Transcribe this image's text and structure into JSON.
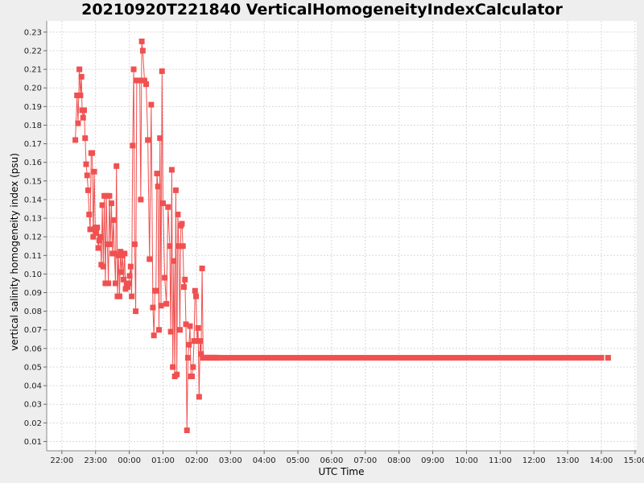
{
  "chart_data": {
    "type": "line",
    "title": "20210920T221840 VerticalHomogeneityIndexCalculator",
    "xlabel": "UTC Time",
    "ylabel": "vertical salinity homogeneity index (psu)",
    "x_ticks": [
      "22:00",
      "23:00",
      "00:00",
      "01:00",
      "02:00",
      "03:00",
      "04:00",
      "05:00",
      "06:00",
      "07:00",
      "08:00",
      "09:00",
      "10:00",
      "11:00",
      "12:00",
      "13:00",
      "14:00",
      "15:00"
    ],
    "y_ticks": [
      "0.01",
      "0.02",
      "0.03",
      "0.04",
      "0.05",
      "0.06",
      "0.07",
      "0.08",
      "0.09",
      "0.10",
      "0.11",
      "0.12",
      "0.13",
      "0.14",
      "0.15",
      "0.16",
      "0.17",
      "0.18",
      "0.19",
      "0.20",
      "0.21",
      "0.22",
      "0.23"
    ],
    "xlim_hours": [
      21.55,
      39.05
    ],
    "ylim": [
      0.005,
      0.236
    ],
    "grid": true,
    "series_color": "#f05050",
    "series": [
      {
        "x_hours": [
          22.4,
          22.45,
          22.48,
          22.52,
          22.55,
          22.58,
          22.6,
          22.63,
          22.66,
          22.69,
          22.72,
          22.75,
          22.78,
          22.81,
          22.84,
          22.87,
          22.9,
          22.93,
          22.96,
          22.99,
          23.02,
          23.05,
          23.08,
          23.11,
          23.14,
          23.17,
          23.2,
          23.23,
          23.26,
          23.29,
          23.32,
          23.35,
          23.38,
          23.41,
          23.44,
          23.47,
          23.5,
          23.53,
          23.56,
          23.59,
          23.62,
          23.65,
          23.68,
          23.71,
          23.74,
          23.77,
          23.8,
          23.83,
          23.86,
          23.89,
          23.92,
          23.95,
          23.98,
          24.01,
          24.04,
          24.07,
          24.1,
          24.13,
          24.16,
          24.19,
          24.22,
          24.25,
          24.28,
          24.31,
          24.34,
          24.37,
          24.4,
          24.45,
          24.5,
          24.55,
          24.6,
          24.65,
          24.7,
          24.73,
          24.76,
          24.79,
          24.82,
          24.85,
          24.88,
          24.91,
          24.94,
          24.97,
          25.0,
          25.05,
          25.1,
          25.15,
          25.2,
          25.23,
          25.26,
          25.29,
          25.32,
          25.35,
          25.38,
          25.41,
          25.44,
          25.47,
          25.5,
          25.53,
          25.56,
          25.59,
          25.62,
          25.65,
          25.68,
          25.71,
          25.74,
          25.77,
          25.8,
          25.83,
          25.86,
          25.89,
          25.92,
          25.95,
          25.98,
          26.01,
          26.04,
          26.07,
          26.1,
          26.13,
          26.16,
          26.19,
          26.22,
          26.25,
          26.28,
          26.31,
          26.34,
          26.37,
          26.4,
          26.43,
          26.46,
          26.49,
          26.52,
          26.55,
          26.58,
          26.61
        ],
        "values": [
          0.172,
          0.196,
          0.181,
          0.21,
          0.196,
          0.206,
          0.188,
          0.184,
          0.188,
          0.173,
          0.159,
          0.153,
          0.145,
          0.132,
          0.124,
          0.165,
          0.165,
          0.12,
          0.155,
          0.125,
          0.122,
          0.125,
          0.114,
          0.118,
          0.12,
          0.105,
          0.137,
          0.104,
          0.142,
          0.095,
          0.142,
          0.116,
          0.095,
          0.142,
          0.116,
          0.138,
          0.111,
          0.129,
          0.111,
          0.095,
          0.158,
          0.088,
          0.11,
          0.088,
          0.112,
          0.101,
          0.11,
          0.097,
          0.111,
          0.092,
          0.094,
          0.093,
          0.095,
          0.099,
          0.104,
          0.088,
          0.169,
          0.21,
          0.116,
          0.08,
          0.204,
          0.204,
          0.204,
          0.204,
          0.14,
          0.225,
          0.22,
          0.204,
          0.202,
          0.172,
          0.108,
          0.191,
          0.082,
          0.067,
          0.091,
          0.091,
          0.154,
          0.147,
          0.07,
          0.173,
          0.083,
          0.209,
          0.138,
          0.098,
          0.084,
          0.136,
          0.115,
          0.069,
          0.156,
          0.05,
          0.107,
          0.045,
          0.145,
          0.046,
          0.132,
          0.115,
          0.07,
          0.126,
          0.127,
          0.115,
          0.093,
          0.097,
          0.073,
          0.016,
          0.055,
          0.062,
          0.072,
          0.045,
          0.045,
          0.05,
          0.064,
          0.091,
          0.088,
          0.064,
          0.071,
          0.034,
          0.064,
          0.057,
          0.103,
          0.055,
          0.055,
          0.055,
          0.055,
          0.055,
          0.055,
          0.055,
          0.055,
          0.055,
          0.055,
          0.055,
          0.055,
          0.055,
          0.055,
          0.055
        ],
        "flat_segment": {
          "x_start_hours": 26.61,
          "x_end_hours": 38.0,
          "value": 0.055
        },
        "outlier_point": {
          "x_hours": 38.2,
          "value": 0.055
        }
      }
    ]
  }
}
